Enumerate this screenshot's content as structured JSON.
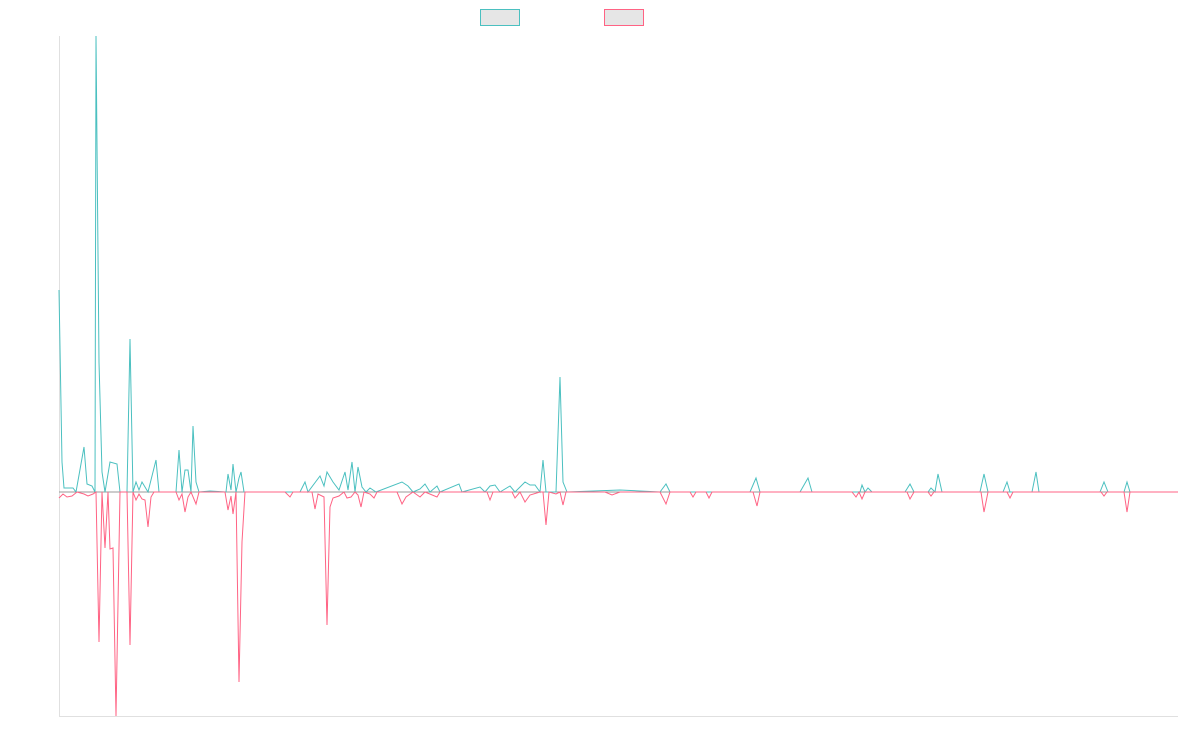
{
  "chart_data": {
    "type": "line",
    "title": "",
    "xlabel": "",
    "ylabel": "",
    "xlim": [
      59,
      1178
    ],
    "ylim": [
      -2.24,
      4.56
    ],
    "grid": false,
    "legend_placement": "top-center",
    "series": [
      {
        "name": "",
        "color": "#4bc0c0",
        "points": [
          [
            59,
            2.02
          ],
          [
            62,
            0.3
          ],
          [
            64,
            0.04
          ],
          [
            70,
            0.04
          ],
          [
            73,
            0.04
          ],
          [
            76,
            0
          ],
          [
            84,
            0.45
          ],
          [
            87,
            0.08
          ],
          [
            92,
            0.06
          ],
          [
            95,
            0
          ],
          [
            96,
            4.56
          ],
          [
            99,
            1.3
          ],
          [
            102,
            0.2
          ],
          [
            105,
            0
          ],
          [
            110,
            0.3
          ],
          [
            117,
            0.28
          ],
          [
            120,
            0
          ],
          [
            127,
            0
          ],
          [
            130,
            1.53
          ],
          [
            133,
            0
          ],
          [
            136,
            0.1
          ],
          [
            139,
            0.02
          ],
          [
            142,
            0.1
          ],
          [
            148,
            0
          ],
          [
            156,
            0.32
          ],
          [
            159,
            0
          ],
          [
            176,
            0
          ],
          [
            179,
            0.42
          ],
          [
            182,
            0
          ],
          [
            185,
            0.22
          ],
          [
            188,
            0.22
          ],
          [
            191,
            0
          ],
          [
            193,
            0.66
          ],
          [
            196,
            0.1
          ],
          [
            199,
            0
          ],
          [
            210,
            0.01
          ],
          [
            226,
            0
          ],
          [
            228,
            0.18
          ],
          [
            231,
            0.02
          ],
          [
            233,
            0.28
          ],
          [
            236,
            0
          ],
          [
            239,
            0.14
          ],
          [
            241,
            0.2
          ],
          [
            244,
            0
          ],
          [
            300,
            0
          ],
          [
            305,
            0.1
          ],
          [
            308,
            0
          ],
          [
            320,
            0.16
          ],
          [
            324,
            0.06
          ],
          [
            327,
            0.2
          ],
          [
            333,
            0.1
          ],
          [
            339,
            0.02
          ],
          [
            345,
            0.2
          ],
          [
            348,
            0.02
          ],
          [
            352,
            0.3
          ],
          [
            355,
            0
          ],
          [
            358,
            0.25
          ],
          [
            362,
            0.05
          ],
          [
            366,
            0
          ],
          [
            370,
            0.04
          ],
          [
            376,
            0
          ],
          [
            402,
            0.1
          ],
          [
            408,
            0.06
          ],
          [
            413,
            0
          ],
          [
            420,
            0.03
          ],
          [
            425,
            0.08
          ],
          [
            430,
            0
          ],
          [
            437,
            0.06
          ],
          [
            440,
            0
          ],
          [
            459,
            0.08
          ],
          [
            462,
            0
          ],
          [
            480,
            0.05
          ],
          [
            485,
            0
          ],
          [
            490,
            0.06
          ],
          [
            495,
            0.07
          ],
          [
            500,
            0
          ],
          [
            510,
            0.06
          ],
          [
            515,
            0
          ],
          [
            525,
            0.1
          ],
          [
            530,
            0.07
          ],
          [
            535,
            0.07
          ],
          [
            540,
            0
          ],
          [
            543,
            0.32
          ],
          [
            546,
            0
          ],
          [
            556,
            0
          ],
          [
            560,
            1.15
          ],
          [
            563,
            0.1
          ],
          [
            567,
            0
          ],
          [
            620,
            0.02
          ],
          [
            660,
            0
          ],
          [
            666,
            0.08
          ],
          [
            670,
            0
          ],
          [
            750,
            0
          ],
          [
            756,
            0.14
          ],
          [
            760,
            0
          ],
          [
            800,
            0
          ],
          [
            808,
            0.14
          ],
          [
            812,
            0
          ],
          [
            860,
            0
          ],
          [
            862,
            0.07
          ],
          [
            865,
            0
          ],
          [
            868,
            0.04
          ],
          [
            872,
            0
          ],
          [
            905,
            0
          ],
          [
            910,
            0.08
          ],
          [
            914,
            0
          ],
          [
            928,
            0
          ],
          [
            931,
            0.04
          ],
          [
            935,
            0
          ],
          [
            938,
            0.18
          ],
          [
            942,
            0
          ],
          [
            980,
            0
          ],
          [
            984,
            0.18
          ],
          [
            988,
            0
          ],
          [
            1003,
            0
          ],
          [
            1007,
            0.1
          ],
          [
            1010,
            0
          ],
          [
            1032,
            0
          ],
          [
            1036,
            0.2
          ],
          [
            1039,
            0
          ],
          [
            1100,
            0
          ],
          [
            1104,
            0.1
          ],
          [
            1108,
            0
          ],
          [
            1124,
            0
          ],
          [
            1127,
            0.1
          ],
          [
            1130,
            0
          ],
          [
            1178,
            0
          ]
        ]
      },
      {
        "name": "",
        "color": "#ff6384",
        "points": [
          [
            59,
            -0.06
          ],
          [
            63,
            -0.02
          ],
          [
            67,
            -0.05
          ],
          [
            72,
            -0.04
          ],
          [
            77,
            0
          ],
          [
            84,
            -0.02
          ],
          [
            88,
            -0.04
          ],
          [
            93,
            -0.02
          ],
          [
            96,
            0
          ],
          [
            99,
            -1.5
          ],
          [
            102,
            0
          ],
          [
            105,
            -0.56
          ],
          [
            108,
            0
          ],
          [
            110,
            -0.57
          ],
          [
            113,
            -0.56
          ],
          [
            116,
            -2.24
          ],
          [
            120,
            0
          ],
          [
            127,
            0
          ],
          [
            130,
            -1.53
          ],
          [
            133,
            0
          ],
          [
            136,
            -0.08
          ],
          [
            139,
            -0.02
          ],
          [
            142,
            -0.07
          ],
          [
            145,
            -0.08
          ],
          [
            148,
            -0.35
          ],
          [
            151,
            -0.05
          ],
          [
            154,
            0
          ],
          [
            176,
            0
          ],
          [
            179,
            -0.08
          ],
          [
            182,
            -0.02
          ],
          [
            185,
            -0.2
          ],
          [
            188,
            -0.05
          ],
          [
            191,
            0
          ],
          [
            196,
            -0.12
          ],
          [
            199,
            0
          ],
          [
            225,
            0
          ],
          [
            228,
            -0.18
          ],
          [
            231,
            -0.04
          ],
          [
            233,
            -0.22
          ],
          [
            236,
            0
          ],
          [
            239,
            -1.9
          ],
          [
            242,
            -0.5
          ],
          [
            245,
            0
          ],
          [
            285,
            0
          ],
          [
            290,
            -0.05
          ],
          [
            293,
            0
          ],
          [
            312,
            0
          ],
          [
            315,
            -0.17
          ],
          [
            318,
            -0.02
          ],
          [
            324,
            -0.05
          ],
          [
            327,
            -1.33
          ],
          [
            330,
            -0.15
          ],
          [
            333,
            -0.06
          ],
          [
            339,
            -0.04
          ],
          [
            344,
            0
          ],
          [
            347,
            -0.06
          ],
          [
            351,
            -0.05
          ],
          [
            355,
            0
          ],
          [
            358,
            -0.03
          ],
          [
            361,
            -0.15
          ],
          [
            364,
            0
          ],
          [
            370,
            -0.02
          ],
          [
            374,
            -0.06
          ],
          [
            377,
            0
          ],
          [
            397,
            0
          ],
          [
            402,
            -0.12
          ],
          [
            406,
            -0.05
          ],
          [
            413,
            0
          ],
          [
            420,
            -0.05
          ],
          [
            425,
            0
          ],
          [
            437,
            -0.05
          ],
          [
            440,
            0
          ],
          [
            487,
            0
          ],
          [
            490,
            -0.08
          ],
          [
            493,
            0
          ],
          [
            512,
            0
          ],
          [
            515,
            -0.06
          ],
          [
            520,
            0
          ],
          [
            525,
            -0.1
          ],
          [
            530,
            -0.03
          ],
          [
            540,
            0
          ],
          [
            543,
            0
          ],
          [
            546,
            -0.33
          ],
          [
            549,
            0
          ],
          [
            556,
            -0.02
          ],
          [
            560,
            0
          ],
          [
            563,
            -0.13
          ],
          [
            566,
            0
          ],
          [
            605,
            0
          ],
          [
            612,
            -0.03
          ],
          [
            620,
            0
          ],
          [
            660,
            0
          ],
          [
            666,
            -0.12
          ],
          [
            670,
            0
          ],
          [
            690,
            0
          ],
          [
            693,
            -0.05
          ],
          [
            696,
            0
          ],
          [
            706,
            0
          ],
          [
            709,
            -0.06
          ],
          [
            712,
            0
          ],
          [
            753,
            0
          ],
          [
            757,
            -0.14
          ],
          [
            760,
            0
          ],
          [
            852,
            0
          ],
          [
            856,
            -0.05
          ],
          [
            859,
            0
          ],
          [
            862,
            -0.07
          ],
          [
            865,
            0
          ],
          [
            907,
            0
          ],
          [
            910,
            -0.07
          ],
          [
            914,
            0
          ],
          [
            928,
            0
          ],
          [
            931,
            -0.04
          ],
          [
            934,
            0
          ],
          [
            981,
            0
          ],
          [
            984,
            -0.2
          ],
          [
            988,
            0
          ],
          [
            1007,
            0
          ],
          [
            1010,
            -0.06
          ],
          [
            1013,
            0
          ],
          [
            1101,
            0
          ],
          [
            1104,
            -0.04
          ],
          [
            1107,
            0
          ],
          [
            1124,
            0
          ],
          [
            1127,
            -0.2
          ],
          [
            1130,
            0
          ],
          [
            1178,
            0
          ]
        ]
      }
    ]
  }
}
